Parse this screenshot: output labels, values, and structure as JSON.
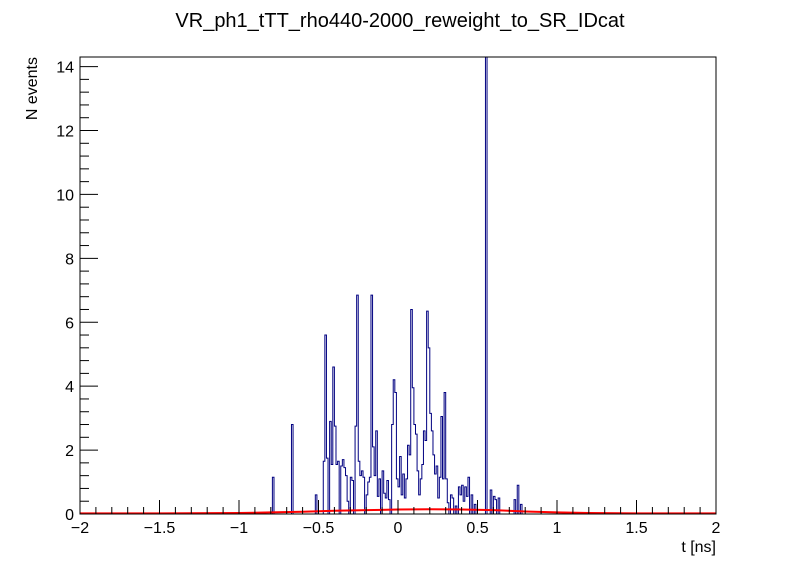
{
  "chart_data": {
    "type": "histogram",
    "title": "VR_ph1_tTT_rho440-2000_reweight_to_SR_IDcat",
    "xlabel": "t [ns]",
    "ylabel": "N events",
    "xlim": [
      -2,
      2
    ],
    "ylim": [
      0,
      14.3
    ],
    "grid": false,
    "legend": "none",
    "x_ticks": [
      -2,
      -1.5,
      -1,
      -0.5,
      0,
      0.5,
      1,
      1.5,
      2
    ],
    "x_tick_labels": [
      "−2",
      "−1.5",
      "−1",
      "−0.5",
      "0",
      "0.5",
      "1",
      "1.5",
      "2"
    ],
    "y_ticks": [
      0,
      2,
      4,
      6,
      8,
      10,
      12,
      14
    ],
    "y_tick_labels": [
      "0",
      "2",
      "4",
      "6",
      "8",
      "10",
      "12",
      "14"
    ],
    "bin_width": 0.01,
    "series": [
      {
        "style": "step",
        "color": "#000080",
        "bins": [
          [
            -0.79,
            1.15
          ],
          [
            -0.67,
            2.8
          ],
          [
            -0.52,
            0.6
          ],
          [
            -0.47,
            1.65
          ],
          [
            -0.46,
            5.6
          ],
          [
            -0.45,
            1.75
          ],
          [
            -0.43,
            2.9
          ],
          [
            -0.42,
            1.55
          ],
          [
            -0.41,
            4.6
          ],
          [
            -0.4,
            2.75
          ],
          [
            -0.39,
            1.55
          ],
          [
            -0.38,
            1.65
          ],
          [
            -0.36,
            1.5
          ],
          [
            -0.35,
            1.7
          ],
          [
            -0.34,
            1.45
          ],
          [
            -0.33,
            1.2
          ],
          [
            -0.32,
            0.4
          ],
          [
            -0.3,
            1.15
          ],
          [
            -0.29,
            1.05
          ],
          [
            -0.27,
            2.75
          ],
          [
            -0.26,
            6.85
          ],
          [
            -0.25,
            1.65
          ],
          [
            -0.24,
            1.2
          ],
          [
            -0.23,
            1.35
          ],
          [
            -0.22,
            1.15
          ],
          [
            -0.2,
            0.6
          ],
          [
            -0.19,
            1.0
          ],
          [
            -0.18,
            1.15
          ],
          [
            -0.17,
            6.85
          ],
          [
            -0.16,
            2.1
          ],
          [
            -0.15,
            1.2
          ],
          [
            -0.14,
            2.6
          ],
          [
            -0.13,
            0.55
          ],
          [
            -0.12,
            1.1
          ],
          [
            -0.1,
            1.35
          ],
          [
            -0.09,
            0.65
          ],
          [
            -0.08,
            0.5
          ],
          [
            -0.07,
            1.05
          ],
          [
            -0.06,
            0.45
          ],
          [
            -0.04,
            2.8
          ],
          [
            -0.03,
            4.2
          ],
          [
            -0.02,
            3.8
          ],
          [
            -0.01,
            1.1
          ],
          [
            0.0,
            0.85
          ],
          [
            0.01,
            1.8
          ],
          [
            0.02,
            0.6
          ],
          [
            0.03,
            1.25
          ],
          [
            0.04,
            0.5
          ],
          [
            0.05,
            1.1
          ],
          [
            0.06,
            2.15
          ],
          [
            0.07,
            1.85
          ],
          [
            0.08,
            6.4
          ],
          [
            0.09,
            3.95
          ],
          [
            0.1,
            2.8
          ],
          [
            0.11,
            2.5
          ],
          [
            0.12,
            1.35
          ],
          [
            0.13,
            0.6
          ],
          [
            0.14,
            1.1
          ],
          [
            0.15,
            1.55
          ],
          [
            0.16,
            2.6
          ],
          [
            0.17,
            2.3
          ],
          [
            0.18,
            6.35
          ],
          [
            0.19,
            5.2
          ],
          [
            0.2,
            3.15
          ],
          [
            0.21,
            2.6
          ],
          [
            0.22,
            1.85
          ],
          [
            0.23,
            1.25
          ],
          [
            0.24,
            1.5
          ],
          [
            0.25,
            0.5
          ],
          [
            0.26,
            1.15
          ],
          [
            0.27,
            3.05
          ],
          [
            0.28,
            1.1
          ],
          [
            0.29,
            3.8
          ],
          [
            0.3,
            1.1
          ],
          [
            0.31,
            0.35
          ],
          [
            0.33,
            0.6
          ],
          [
            0.34,
            0.5
          ],
          [
            0.36,
            0.25
          ],
          [
            0.38,
            0.85
          ],
          [
            0.39,
            0.6
          ],
          [
            0.4,
            0.9
          ],
          [
            0.41,
            0.4
          ],
          [
            0.42,
            0.85
          ],
          [
            0.43,
            0.55
          ],
          [
            0.44,
            1.15
          ],
          [
            0.46,
            0.6
          ],
          [
            0.48,
            0.3
          ],
          [
            0.55,
            14.3
          ],
          [
            0.58,
            0.75
          ],
          [
            0.6,
            0.55
          ],
          [
            0.61,
            0.45
          ],
          [
            0.63,
            0.5
          ],
          [
            0.73,
            0.45
          ],
          [
            0.75,
            0.9
          ],
          [
            0.77,
            0.3
          ]
        ]
      },
      {
        "style": "line",
        "color": "#ff0000",
        "points": [
          [
            -2,
            0.02
          ],
          [
            -1.5,
            0.02
          ],
          [
            -1,
            0.03
          ],
          [
            -0.8,
            0.05
          ],
          [
            -0.6,
            0.07
          ],
          [
            -0.4,
            0.1
          ],
          [
            -0.2,
            0.12
          ],
          [
            0,
            0.14
          ],
          [
            0.2,
            0.15
          ],
          [
            0.4,
            0.14
          ],
          [
            0.6,
            0.12
          ],
          [
            0.8,
            0.08
          ],
          [
            1.0,
            0.05
          ],
          [
            1.2,
            0.03
          ],
          [
            1.5,
            0.02
          ],
          [
            2,
            0.02
          ]
        ]
      }
    ]
  }
}
